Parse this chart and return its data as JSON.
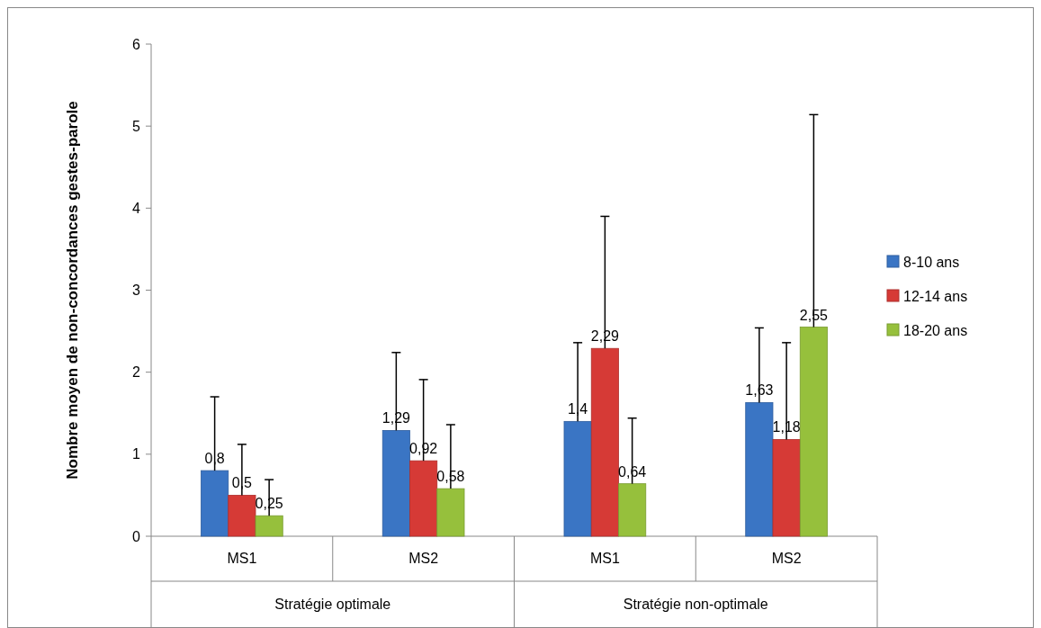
{
  "chart_data": {
    "type": "bar",
    "ylabel": "Nombre moyen de non-concordances gestes-parole",
    "categories": [
      "MS1",
      "MS2",
      "MS1",
      "MS2"
    ],
    "annotations": [
      "Stratégie optimale",
      "Stratégie non-optimale"
    ],
    "series": [
      {
        "name": "8-10 ans",
        "color": "#3a75c4",
        "values": [
          0.8,
          1.29,
          1.4,
          1.63
        ],
        "value_labels": [
          "0,8",
          "1,29",
          "1,4",
          "1,63"
        ],
        "errors": [
          [
            0.8,
            1.7
          ],
          [
            1.29,
            2.24
          ],
          [
            1.4,
            2.36
          ],
          [
            1.63,
            2.54
          ]
        ]
      },
      {
        "name": "12-14 ans",
        "color": "#d63a36",
        "values": [
          0.5,
          0.92,
          2.29,
          1.18
        ],
        "value_labels": [
          "0,5",
          "0,92",
          "2,29",
          "1,18"
        ],
        "errors": [
          [
            0.5,
            1.12
          ],
          [
            0.92,
            1.91
          ],
          [
            2.29,
            3.9
          ],
          [
            1.18,
            2.36
          ]
        ]
      },
      {
        "name": "18-20 ans",
        "color": "#96c03c",
        "values": [
          0.25,
          0.58,
          0.64,
          2.55
        ],
        "value_labels": [
          "0,25",
          "0,58",
          "0,64",
          "2,55"
        ],
        "errors": [
          [
            0.25,
            0.69
          ],
          [
            0.58,
            1.36
          ],
          [
            0.64,
            1.44
          ],
          [
            2.55,
            5.14
          ]
        ]
      }
    ],
    "ylim": [
      0,
      6
    ],
    "yticks": [
      0,
      1,
      2,
      3,
      4,
      5,
      6
    ],
    "legend": "right"
  }
}
